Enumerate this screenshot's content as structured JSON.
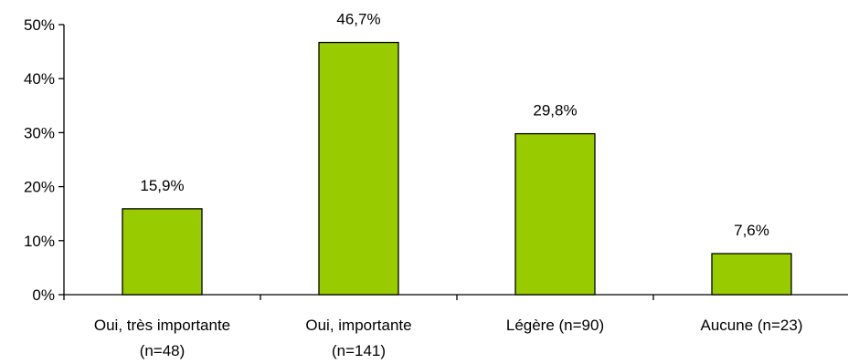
{
  "chart_data": {
    "type": "bar",
    "categories": [
      [
        "Oui, très importante",
        "(n=48)"
      ],
      [
        "Oui, importante",
        "(n=141)"
      ],
      [
        "Légère (n=90)"
      ],
      [
        "Aucune (n=23)"
      ]
    ],
    "values": [
      15.9,
      46.7,
      29.8,
      7.6
    ],
    "data_labels": [
      "15,9%",
      "46,7%",
      "29,8%",
      "7,6%"
    ],
    "y_ticks": [
      {
        "value": 0,
        "label": "0%"
      },
      {
        "value": 10,
        "label": "10%"
      },
      {
        "value": 20,
        "label": "20%"
      },
      {
        "value": 30,
        "label": "30%"
      },
      {
        "value": 40,
        "label": "40%"
      },
      {
        "value": 50,
        "label": "50%"
      }
    ],
    "ylim": [
      0,
      50
    ],
    "title": "",
    "xlabel": "",
    "ylabel": "",
    "grid": false,
    "legend": "none",
    "bar_color": "#99cc00",
    "bar_edge_color": "#000000",
    "axis_color": "#000000"
  }
}
